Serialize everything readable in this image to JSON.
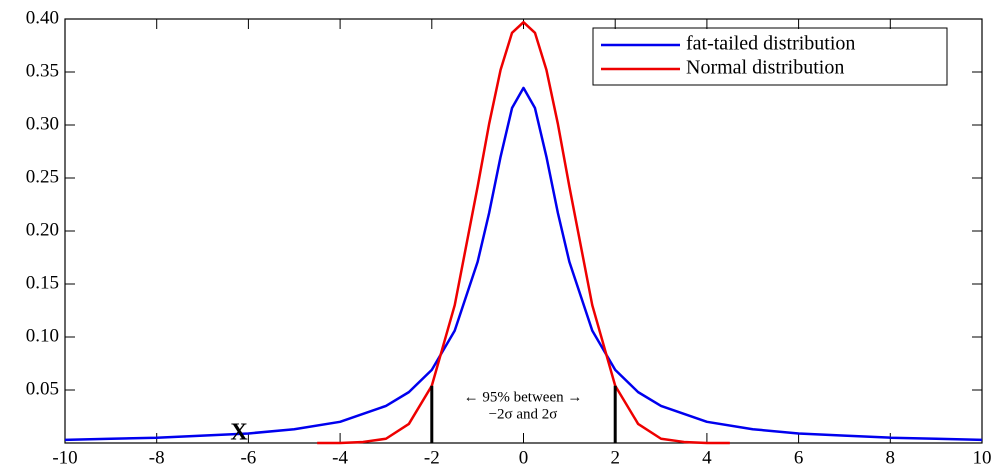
{
  "chart_data": {
    "type": "line",
    "xlim": [
      -10,
      10
    ],
    "ylim": [
      0,
      0.4
    ],
    "xticks": [
      -10,
      -8,
      -6,
      -4,
      -2,
      0,
      2,
      4,
      6,
      8,
      10
    ],
    "yticks": [
      {
        "value": 0.05,
        "label": "0.05"
      },
      {
        "value": 0.1,
        "label": "0.10"
      },
      {
        "value": 0.15,
        "label": "0.15"
      },
      {
        "value": 0.2,
        "label": "0.20"
      },
      {
        "value": 0.25,
        "label": "0.25"
      },
      {
        "value": 0.3,
        "label": "0.30"
      },
      {
        "value": 0.35,
        "label": "0.35"
      },
      {
        "value": 0.4,
        "label": "0.40"
      }
    ],
    "legend": "upper right",
    "series": [
      {
        "name": "fat-tailed distribution",
        "color": "#0000ee",
        "x": [
          -10,
          -9,
          -8,
          -7,
          -6,
          -5,
          -4,
          -3,
          -2.5,
          -2,
          -1.5,
          -1,
          -0.75,
          -0.5,
          -0.25,
          0,
          0.25,
          0.5,
          0.75,
          1,
          1.5,
          2,
          2.5,
          3,
          4,
          5,
          6,
          7,
          8,
          9,
          10
        ],
        "values": [
          0.003,
          0.004,
          0.005,
          0.007,
          0.009,
          0.013,
          0.02,
          0.035,
          0.048,
          0.069,
          0.106,
          0.171,
          0.217,
          0.27,
          0.316,
          0.335,
          0.316,
          0.27,
          0.217,
          0.171,
          0.106,
          0.069,
          0.048,
          0.035,
          0.02,
          0.013,
          0.009,
          0.007,
          0.005,
          0.004,
          0.003
        ]
      },
      {
        "name": "Normal distribution",
        "color": "#ee0000",
        "x": [
          -4.5,
          -4,
          -3.5,
          -3,
          -2.5,
          -2,
          -1.5,
          -1,
          -0.75,
          -0.5,
          -0.25,
          0,
          0.25,
          0.5,
          0.75,
          1,
          1.5,
          2,
          2.5,
          3,
          3.5,
          4,
          4.5
        ],
        "values": [
          0.0,
          0.0,
          0.001,
          0.004,
          0.018,
          0.054,
          0.13,
          0.242,
          0.301,
          0.352,
          0.387,
          0.397,
          0.387,
          0.352,
          0.301,
          0.242,
          0.13,
          0.054,
          0.018,
          0.004,
          0.001,
          0.0,
          0.0
        ]
      }
    ],
    "vlines": {
      "x": [
        -2,
        2
      ],
      "values": [
        0.054,
        0.054
      ]
    },
    "annotations": [
      "← 95% between →",
      "−2σ and 2σ",
      "X"
    ]
  }
}
